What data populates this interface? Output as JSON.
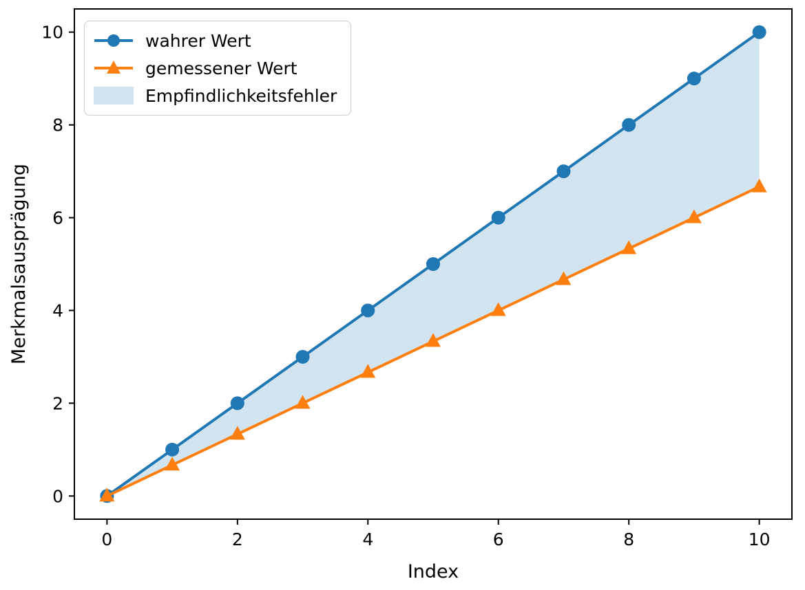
{
  "figure": {
    "background": "#ffffff",
    "text_color": "#000000",
    "spine_color": "#000000"
  },
  "chart_data": {
    "type": "line",
    "xlabel": "Index",
    "ylabel": "Merkmalsausprägung",
    "xlim": [
      -0.5,
      10.5
    ],
    "ylim": [
      -0.5,
      10.5
    ],
    "xticks": [
      0,
      2,
      4,
      6,
      8,
      10
    ],
    "yticks": [
      0,
      2,
      4,
      6,
      8,
      10
    ],
    "grid": false,
    "x": [
      0,
      1,
      2,
      3,
      4,
      5,
      6,
      7,
      8,
      9,
      10
    ],
    "series": [
      {
        "name": "wahrer Wert",
        "marker": "circle",
        "color": "#1f77b4",
        "values": [
          0,
          1,
          2,
          3,
          4,
          5,
          6,
          7,
          8,
          9,
          10
        ]
      },
      {
        "name": "gemessener Wert",
        "marker": "triangle-up",
        "color": "#ff7f0e",
        "values": [
          0,
          0.6667,
          1.3333,
          2,
          2.6667,
          3.3333,
          4,
          4.6667,
          5.3333,
          6,
          6.6667
        ]
      }
    ],
    "fill_between": {
      "label": "Empfindlichkeitsfehler",
      "between": [
        "wahrer Wert",
        "gemessener Wert"
      ],
      "color": "#1f77b4",
      "alpha": 0.2
    },
    "legend": {
      "position": "upper-left",
      "entries": [
        "wahrer Wert",
        "gemessener Wert",
        "Empfindlichkeitsfehler"
      ]
    }
  }
}
